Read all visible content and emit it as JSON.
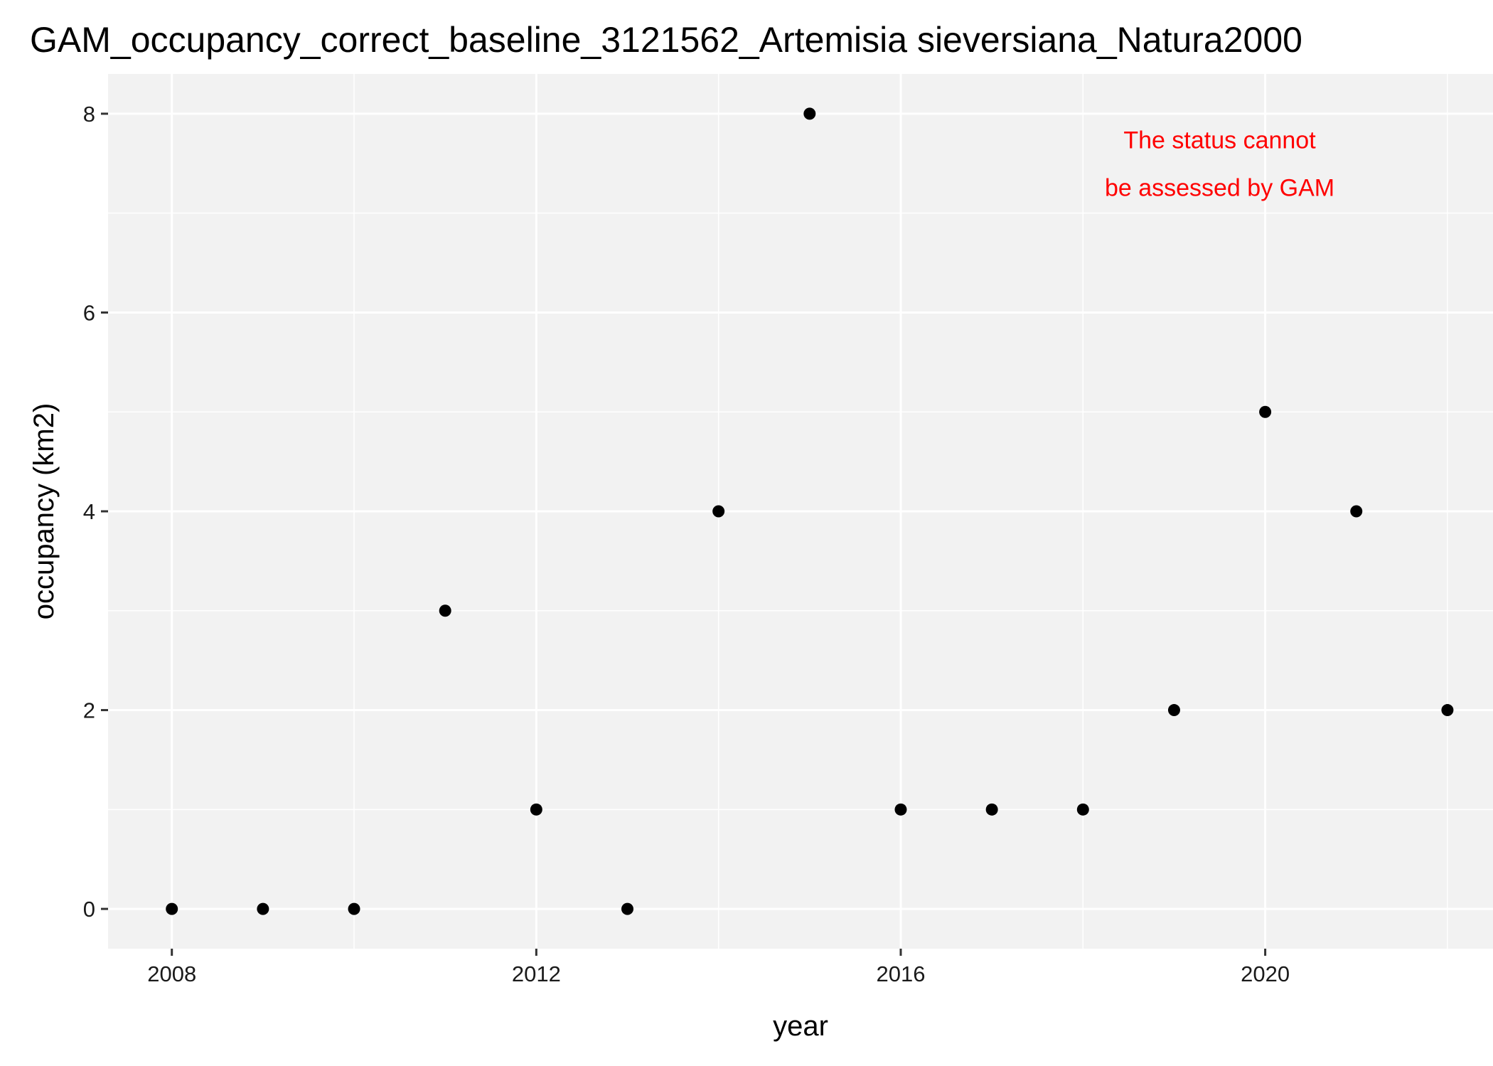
{
  "chart_data": {
    "type": "scatter",
    "title": "GAM_occupancy_correct_baseline_3121562_Artemisia sieversiana_Natura2000",
    "xlabel": "year",
    "ylabel": "occupancy (km2)",
    "xlim": [
      2007.3,
      2022.5
    ],
    "ylim": [
      -0.4,
      8.4
    ],
    "x_ticks": [
      2008,
      2012,
      2016,
      2020
    ],
    "x_minor_ticks": [
      2010,
      2014,
      2018,
      2022
    ],
    "y_ticks": [
      0,
      2,
      4,
      6,
      8
    ],
    "y_minor_ticks": [
      1,
      3,
      5,
      7
    ],
    "grid": true,
    "legend": "none",
    "colors": {
      "panel": "#f2f2f2",
      "grid": "#ffffff",
      "points": "#000000",
      "annotation": "#ff0000"
    },
    "points": [
      {
        "x": 2008,
        "y": 0
      },
      {
        "x": 2009,
        "y": 0
      },
      {
        "x": 2010,
        "y": 0
      },
      {
        "x": 2011,
        "y": 3
      },
      {
        "x": 2012,
        "y": 1
      },
      {
        "x": 2013,
        "y": 0
      },
      {
        "x": 2014,
        "y": 4
      },
      {
        "x": 2015,
        "y": 8
      },
      {
        "x": 2016,
        "y": 1
      },
      {
        "x": 2017,
        "y": 1
      },
      {
        "x": 2018,
        "y": 1
      },
      {
        "x": 2019,
        "y": 2
      },
      {
        "x": 2020,
        "y": 5
      },
      {
        "x": 2021,
        "y": 4
      },
      {
        "x": 2022,
        "y": 2
      }
    ],
    "annotation": {
      "lines": [
        "The status cannot",
        "be assessed by GAM"
      ],
      "x": 2019.5,
      "y": 7.5
    }
  }
}
